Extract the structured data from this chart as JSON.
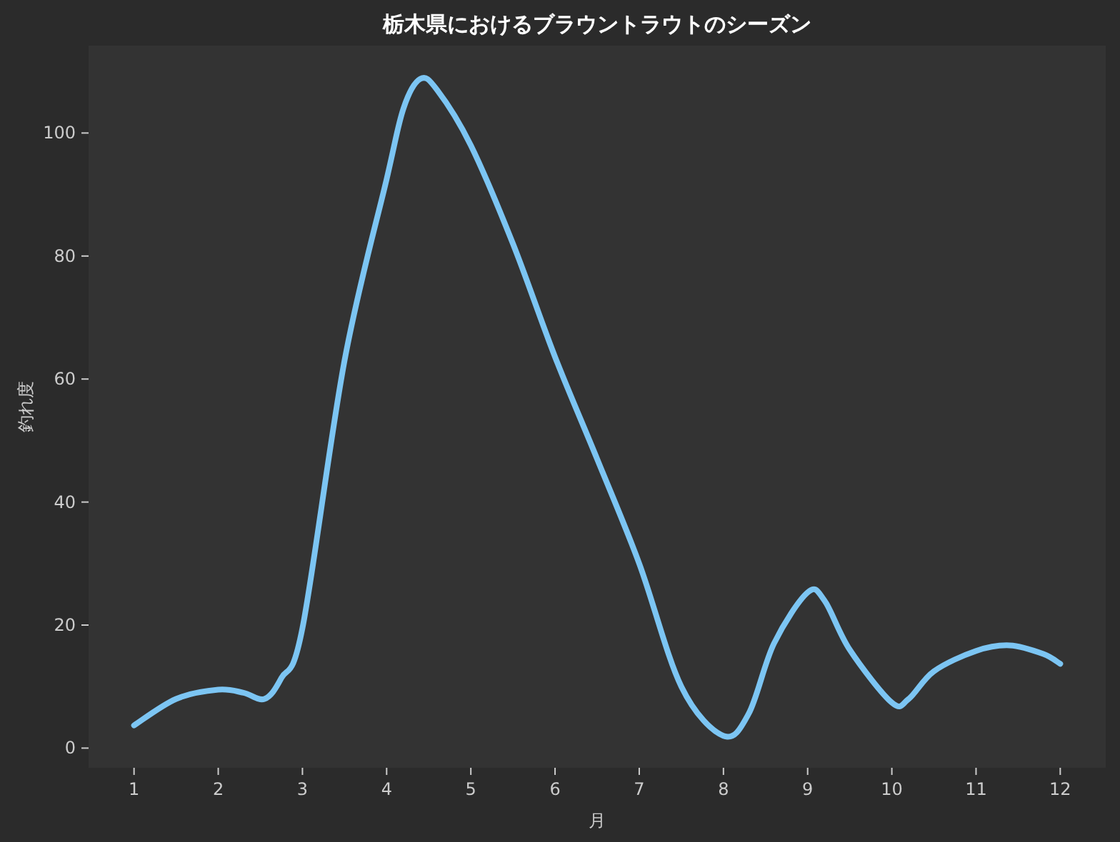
{
  "chart_data": {
    "type": "line",
    "title": "栃木県におけるブラウントラウトのシーズン",
    "xlabel": "月",
    "ylabel": "釣れ度",
    "series": [
      {
        "color": "#7cc5f3",
        "x": [
          1,
          1.5,
          2,
          2.3,
          2.55,
          2.75,
          3,
          3.5,
          4,
          4.2,
          4.4,
          4.6,
          5,
          5.5,
          6,
          6.5,
          7,
          7.5,
          8,
          8.3,
          8.6,
          9,
          9.2,
          9.5,
          10,
          10.2,
          10.5,
          11,
          11.4,
          11.8,
          12
        ],
        "values": [
          3.7,
          8,
          9.5,
          9,
          8,
          11.4,
          19.5,
          63,
          92.5,
          104,
          108.8,
          107,
          98,
          82,
          63.6,
          47,
          30,
          10,
          2,
          5.6,
          17,
          25.3,
          24,
          16,
          7.4,
          8,
          12.5,
          15.8,
          16.7,
          15.3,
          13.7
        ]
      }
    ],
    "xlim": [
      0.46,
      12.54
    ],
    "ylim": [
      -3.2,
      114.2
    ],
    "xticks": [
      1,
      2,
      3,
      4,
      5,
      6,
      7,
      8,
      9,
      10,
      11,
      12
    ],
    "yticks": [
      0,
      20,
      40,
      60,
      80,
      100
    ],
    "grid": false,
    "marker": "none",
    "line_style": "solid"
  }
}
